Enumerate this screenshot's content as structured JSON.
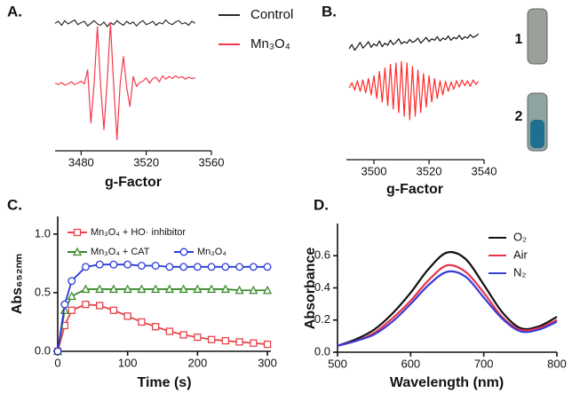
{
  "chart_data": [
    {
      "type": "line",
      "panel_label": "A.",
      "xlabel": "g-Factor",
      "legend": "right",
      "x": [
        3464,
        3466,
        3468,
        3470,
        3472,
        3474,
        3476,
        3478,
        3480,
        3482,
        3484,
        3486,
        3488,
        3490,
        3492,
        3494,
        3496,
        3498,
        3500,
        3502,
        3504,
        3506,
        3508,
        3510,
        3512,
        3514,
        3516,
        3518,
        3520,
        3522,
        3524,
        3526,
        3528,
        3530,
        3532,
        3534,
        3536,
        3538,
        3540,
        3542,
        3544,
        3546,
        3548,
        3550
      ],
      "series": [
        {
          "name": "Control",
          "color": "#2b2b2b",
          "values": [
            8.5,
            8.8,
            8.2,
            8.9,
            8.4,
            8.7,
            9.0,
            8.3,
            8.6,
            8.8,
            8.1,
            8.5,
            8.9,
            8.4,
            8.2,
            8.7,
            8.0,
            8.6,
            8.3,
            8.9,
            8.5,
            8.2,
            8.8,
            8.4,
            8.7,
            8.1,
            8.6,
            8.9,
            8.3,
            8.5,
            8.8,
            8.2,
            8.6,
            8.4,
            9.0,
            8.5,
            8.3,
            8.7,
            8.9,
            8.4,
            8.6,
            8.2,
            8.8,
            8.5
          ]
        },
        {
          "name": "Mn₃O₄",
          "color": "#f23a4c",
          "values": [
            -0.5,
            -0.7,
            -0.4,
            -0.8,
            -0.6,
            -0.3,
            -0.7,
            -0.5,
            -0.2,
            -0.6,
            1.5,
            -6.5,
            -0.5,
            8,
            -1,
            -7.5,
            -0.3,
            8.5,
            -0.8,
            -9,
            -0.5,
            3.5,
            -1.2,
            -4,
            0.5,
            -1,
            -0.4,
            -0.2,
            0.3,
            -0.5,
            0.2,
            0.4,
            -0.3,
            0.6,
            0.1,
            0.5,
            0.2,
            0.6,
            0.3,
            0.5,
            0.1,
            0.4,
            0.2,
            0.3
          ]
        }
      ],
      "xlim": [
        3464,
        3560
      ],
      "ylim": [
        -10,
        10
      ],
      "xticks": [
        3480,
        3520,
        3560
      ]
    },
    {
      "type": "line",
      "panel_label": "B.",
      "xlabel": "g-Factor",
      "sample_labels": [
        "1",
        "2"
      ],
      "x": [
        3491,
        3492,
        3493,
        3494,
        3495,
        3496,
        3497,
        3498,
        3499,
        3500,
        3501,
        3502,
        3503,
        3504,
        3505,
        3506,
        3507,
        3508,
        3509,
        3510,
        3511,
        3512,
        3513,
        3514,
        3515,
        3516,
        3517,
        3518,
        3519,
        3520,
        3521,
        3522,
        3523,
        3524,
        3525,
        3526,
        3527,
        3528,
        3529,
        3530,
        3531,
        3532,
        3533,
        3534,
        3535,
        3536,
        3537,
        3538
      ],
      "series": [
        {
          "color": "#111111",
          "values": [
            5,
            5.6,
            4.8,
            5.3,
            5.9,
            5.1,
            5.5,
            6.0,
            5.2,
            5.7,
            5.4,
            6.1,
            5.3,
            5.8,
            5.5,
            6.2,
            5.6,
            5.9,
            6.4,
            5.7,
            6.0,
            5.8,
            6.3,
            5.9,
            6.1,
            6.5,
            5.8,
            6.2,
            6.6,
            6.0,
            6.4,
            6.2,
            6.7,
            6.1,
            6.5,
            6.3,
            6.8,
            6.2,
            6.6,
            6.4,
            6.9,
            6.3,
            6.7,
            6.5,
            7.0,
            6.6,
            6.8,
            7.1
          ]
        },
        {
          "color": "#ff2a2a",
          "values": [
            -0.5,
            0.2,
            -0.8,
            0.5,
            -1,
            0.6,
            -1.2,
            0.8,
            -1.5,
            1.2,
            -2,
            1.8,
            -2.5,
            2.3,
            -3,
            2.8,
            -3.5,
            3,
            -4,
            3.2,
            -4.5,
            3,
            -5,
            2.5,
            -4.5,
            2,
            -4,
            1.5,
            -3.2,
            1.2,
            -2.5,
            0.8,
            -2,
            0.5,
            -1.5,
            0.4,
            -1,
            0.3,
            -0.7,
            0.5,
            -0.4,
            0.6,
            -0.2,
            0.5,
            -0.3,
            0.6,
            0,
            0.4
          ]
        }
      ],
      "xlim": [
        3490,
        3540
      ],
      "ylim": [
        -10,
        10
      ],
      "xticks": [
        3500,
        3520,
        3540
      ]
    },
    {
      "type": "line",
      "panel_label": "C.",
      "xlabel": "Time (s)",
      "ylabel": "Abs₆₅₂ₙₘ",
      "legend": "upper left",
      "x": [
        0,
        10,
        20,
        40,
        60,
        80,
        100,
        120,
        140,
        160,
        180,
        200,
        220,
        240,
        260,
        280,
        300
      ],
      "series": [
        {
          "name": "Mn₃O₄ + HO· inhibitor",
          "color": "#e8434b",
          "marker": "square",
          "values": [
            0,
            0.22,
            0.35,
            0.4,
            0.39,
            0.35,
            0.3,
            0.25,
            0.21,
            0.17,
            0.14,
            0.12,
            0.1,
            0.09,
            0.08,
            0.07,
            0.06
          ]
        },
        {
          "name": "Mn₃O₄ + CAT",
          "color": "#3a8a2a",
          "marker": "triangle",
          "values": [
            0,
            0.35,
            0.47,
            0.53,
            0.53,
            0.53,
            0.53,
            0.53,
            0.53,
            0.53,
            0.53,
            0.53,
            0.53,
            0.53,
            0.52,
            0.52,
            0.52
          ]
        },
        {
          "name": "Mn₃O₄",
          "color": "#2a3bd6",
          "marker": "circle",
          "values": [
            0,
            0.4,
            0.6,
            0.72,
            0.74,
            0.74,
            0.74,
            0.73,
            0.73,
            0.72,
            0.72,
            0.72,
            0.72,
            0.72,
            0.72,
            0.72,
            0.72
          ]
        }
      ],
      "xlim": [
        0,
        305
      ],
      "ylim": [
        0,
        1.15
      ],
      "xticks": [
        0,
        100,
        200,
        300
      ],
      "yticks": [
        {
          "value": 0,
          "label": "0.0"
        },
        {
          "value": 0.5,
          "label": "0.5"
        },
        {
          "value": 1,
          "label": "1.0"
        }
      ]
    },
    {
      "type": "line",
      "panel_label": "D.",
      "xlabel": "Wavelength (nm)",
      "ylabel": "Absorbance",
      "legend": "upper right",
      "smooth": true,
      "x": [
        500,
        525,
        550,
        575,
        600,
        625,
        650,
        675,
        700,
        725,
        750,
        775,
        800
      ],
      "series": [
        {
          "name": "O₂",
          "color": "#111111",
          "values": [
            0.04,
            0.08,
            0.14,
            0.24,
            0.37,
            0.52,
            0.62,
            0.58,
            0.42,
            0.25,
            0.15,
            0.16,
            0.22
          ]
        },
        {
          "name": "Air",
          "color": "#e8334b",
          "values": [
            0.04,
            0.07,
            0.12,
            0.21,
            0.32,
            0.45,
            0.54,
            0.5,
            0.37,
            0.22,
            0.14,
            0.15,
            0.2
          ]
        },
        {
          "name": "N₂",
          "color": "#3b3bd6",
          "values": [
            0.04,
            0.07,
            0.11,
            0.19,
            0.3,
            0.42,
            0.5,
            0.47,
            0.34,
            0.21,
            0.13,
            0.14,
            0.19
          ]
        }
      ],
      "xlim": [
        500,
        800
      ],
      "ylim": [
        0,
        0.8
      ],
      "xticks": [
        500,
        600,
        700,
        800
      ],
      "yticks": [
        {
          "value": 0,
          "label": "0.0"
        },
        {
          "value": 0.2,
          "label": "0.2"
        },
        {
          "value": 0.4,
          "label": "0.4"
        },
        {
          "value": 0.6,
          "label": "0.6"
        }
      ]
    }
  ]
}
